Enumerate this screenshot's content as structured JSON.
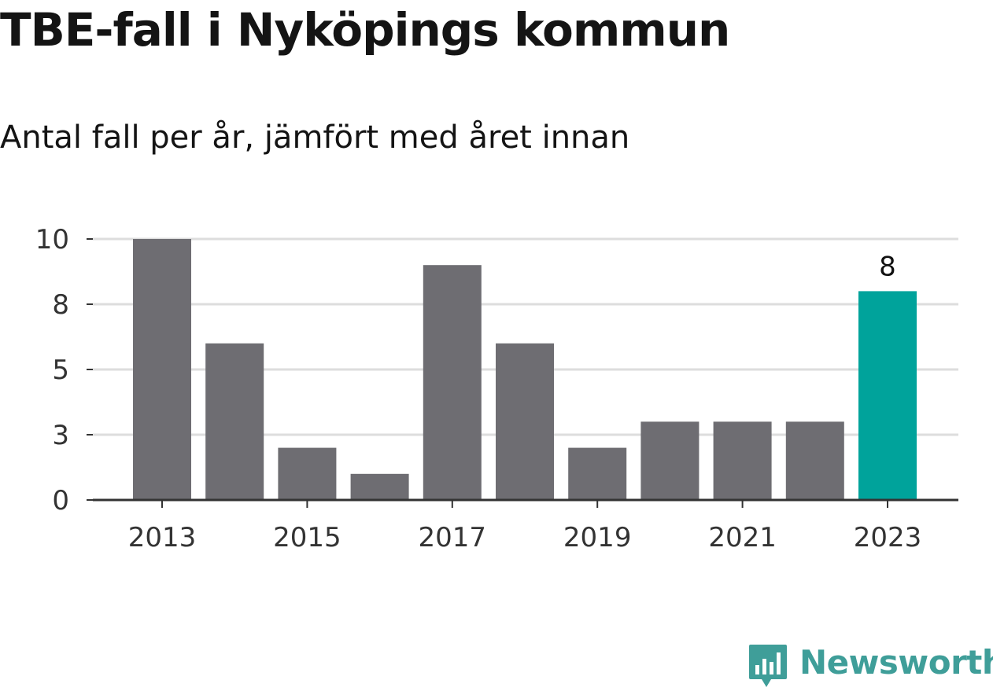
{
  "title": "TBE-fall i Nyköpings kommun",
  "subtitle": "Antal fall per år, jämfört med året innan",
  "logo": {
    "text": "Newsworthy"
  },
  "colors": {
    "bar": "#6e6d72",
    "highlight": "#00a39b",
    "grid": "#dddddd",
    "axis": "#333333",
    "brand": "#3f9e99"
  },
  "chart_data": {
    "type": "bar",
    "categories": [
      "2013",
      "2014",
      "2015",
      "2016",
      "2017",
      "2018",
      "2019",
      "2020",
      "2021",
      "2022",
      "2023"
    ],
    "values": [
      10,
      6,
      2,
      1,
      9,
      6,
      2,
      3,
      3,
      3,
      8
    ],
    "highlight_index": 10,
    "data_labels": [
      {
        "index": 10,
        "text": "8"
      }
    ],
    "x_tick_labels": [
      "2013",
      "2015",
      "2017",
      "2019",
      "2021",
      "2023"
    ],
    "y_tick_labels": [
      "0",
      "3",
      "5",
      "8",
      "10"
    ],
    "y_ticks": [
      0,
      2.5,
      5,
      7.5,
      10
    ],
    "ylim": [
      0,
      10
    ],
    "xlabel": "",
    "ylabel": "",
    "grid": true
  }
}
